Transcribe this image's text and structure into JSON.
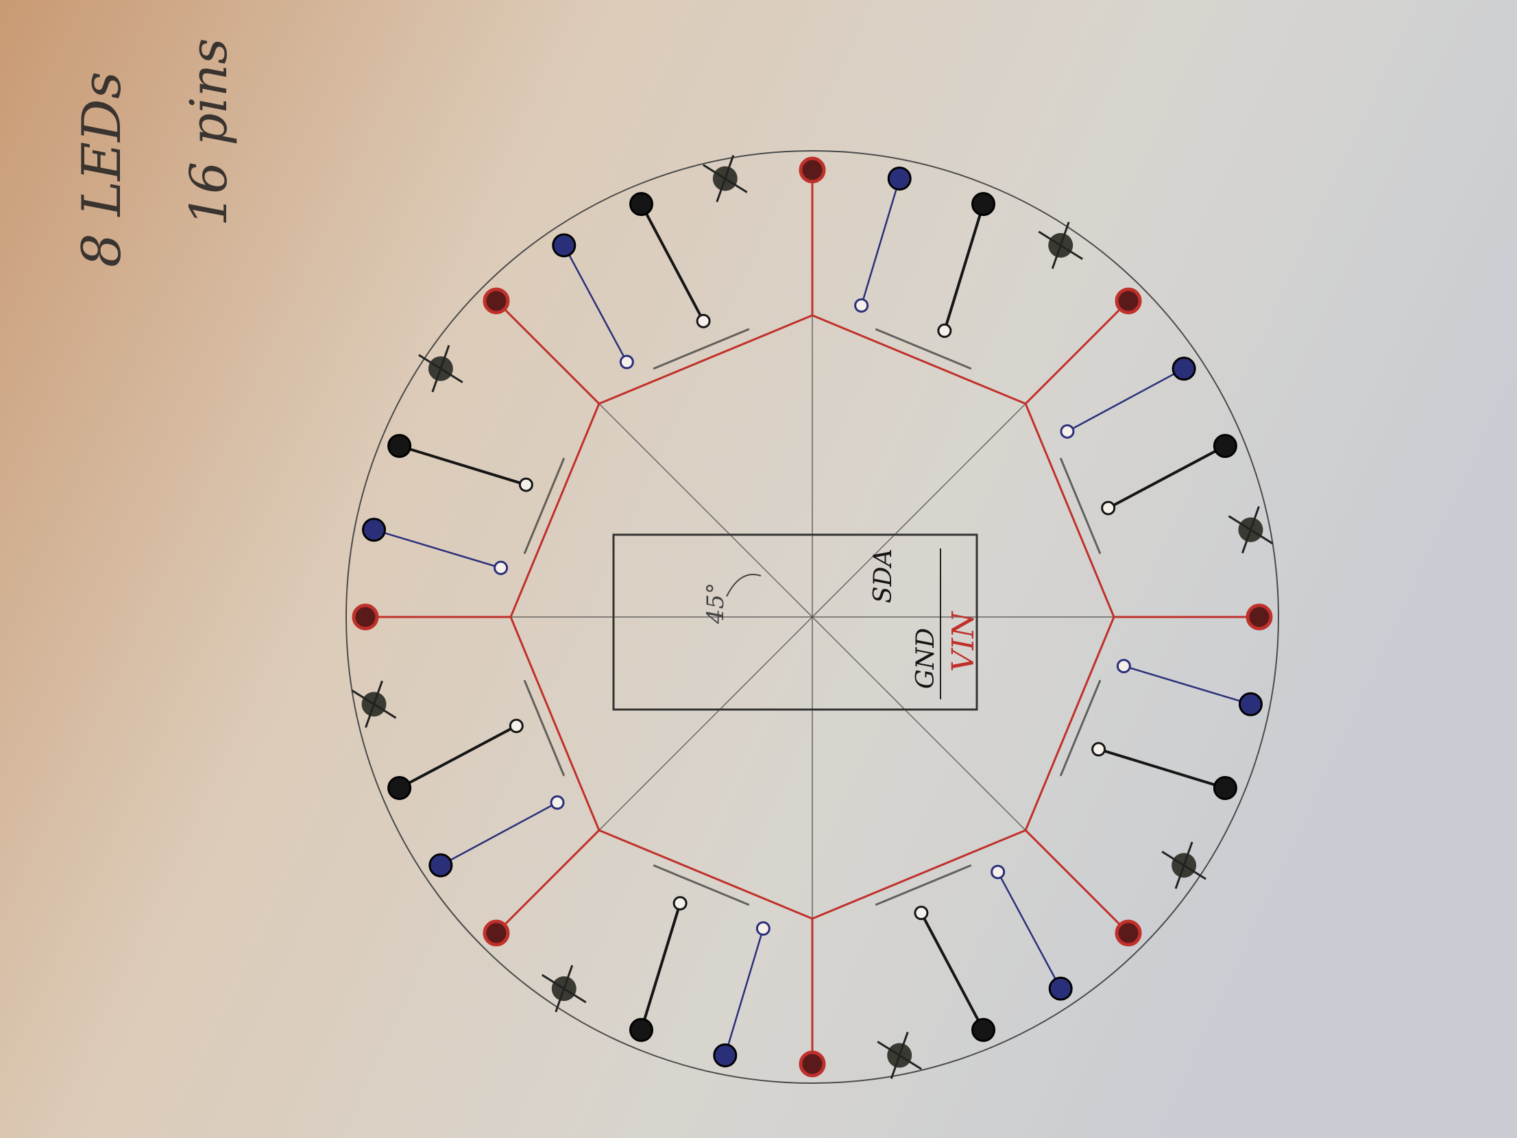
{
  "notes": {
    "line1": "8 LEDs",
    "line2": "16 pins"
  },
  "board": {
    "pins": [
      {
        "label": "GND"
      },
      {
        "label": "VIN"
      },
      {
        "label": "SDA"
      }
    ],
    "angle_label": "45°"
  },
  "colors": {
    "paper": "#d9cfc3",
    "pencil": "#4a4a4a",
    "power": "#c0302a",
    "signal": "#2a2f7a",
    "ink": "#151515",
    "dead_pad": "#3a3a33"
  },
  "sectors": 8,
  "pads_per_sector": 3
}
